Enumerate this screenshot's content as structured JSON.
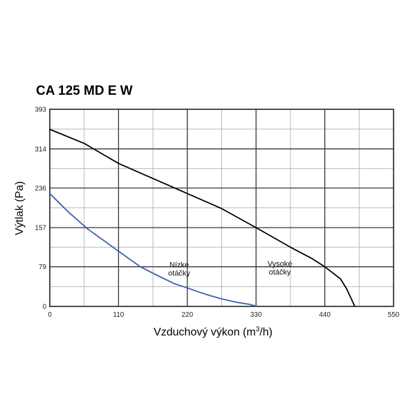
{
  "chart_data": {
    "type": "line",
    "title": "CA 125 MD E W",
    "xlabel": "Vzduchový výkon (m",
    "xlabel_superscript": "3",
    "xlabel_suffix": "/h)",
    "ylabel": "Výtlak (Pa)",
    "xlim": [
      0,
      550
    ],
    "ylim": [
      0,
      393
    ],
    "x_major_ticks": [
      0,
      110,
      220,
      330,
      440,
      550
    ],
    "x_minor_ticks": [
      55,
      165,
      275,
      385,
      495
    ],
    "y_major_ticks": [
      0,
      79,
      157,
      236,
      314,
      393
    ],
    "y_minor_ticks": [
      39.5,
      118,
      196.5,
      275,
      353.5
    ],
    "grid": true,
    "series": [
      {
        "color": "#000000",
        "points": [
          [
            0,
            353
          ],
          [
            55,
            325
          ],
          [
            110,
            285
          ],
          [
            165,
            255
          ],
          [
            220,
            225
          ],
          [
            275,
            195
          ],
          [
            330,
            157
          ],
          [
            385,
            118
          ],
          [
            420,
            95
          ],
          [
            440,
            79
          ],
          [
            465,
            55
          ],
          [
            475,
            35
          ],
          [
            488,
            0
          ]
        ]
      },
      {
        "color": "#3a5fa8",
        "points": [
          [
            0,
            225
          ],
          [
            30,
            188
          ],
          [
            60,
            155
          ],
          [
            110,
            110
          ],
          [
            145,
            79
          ],
          [
            170,
            63
          ],
          [
            200,
            45
          ],
          [
            220,
            37
          ],
          [
            240,
            28
          ],
          [
            255,
            22
          ],
          [
            275,
            15
          ],
          [
            300,
            8
          ],
          [
            320,
            4
          ],
          [
            332,
            0
          ]
        ]
      }
    ],
    "annotations": [
      {
        "lines": [
          "Nízke",
          "otáčky"
        ],
        "x": 207,
        "y": 78
      },
      {
        "lines": [
          "Vysoké",
          "otáčky"
        ],
        "x": 368,
        "y": 80
      }
    ]
  }
}
